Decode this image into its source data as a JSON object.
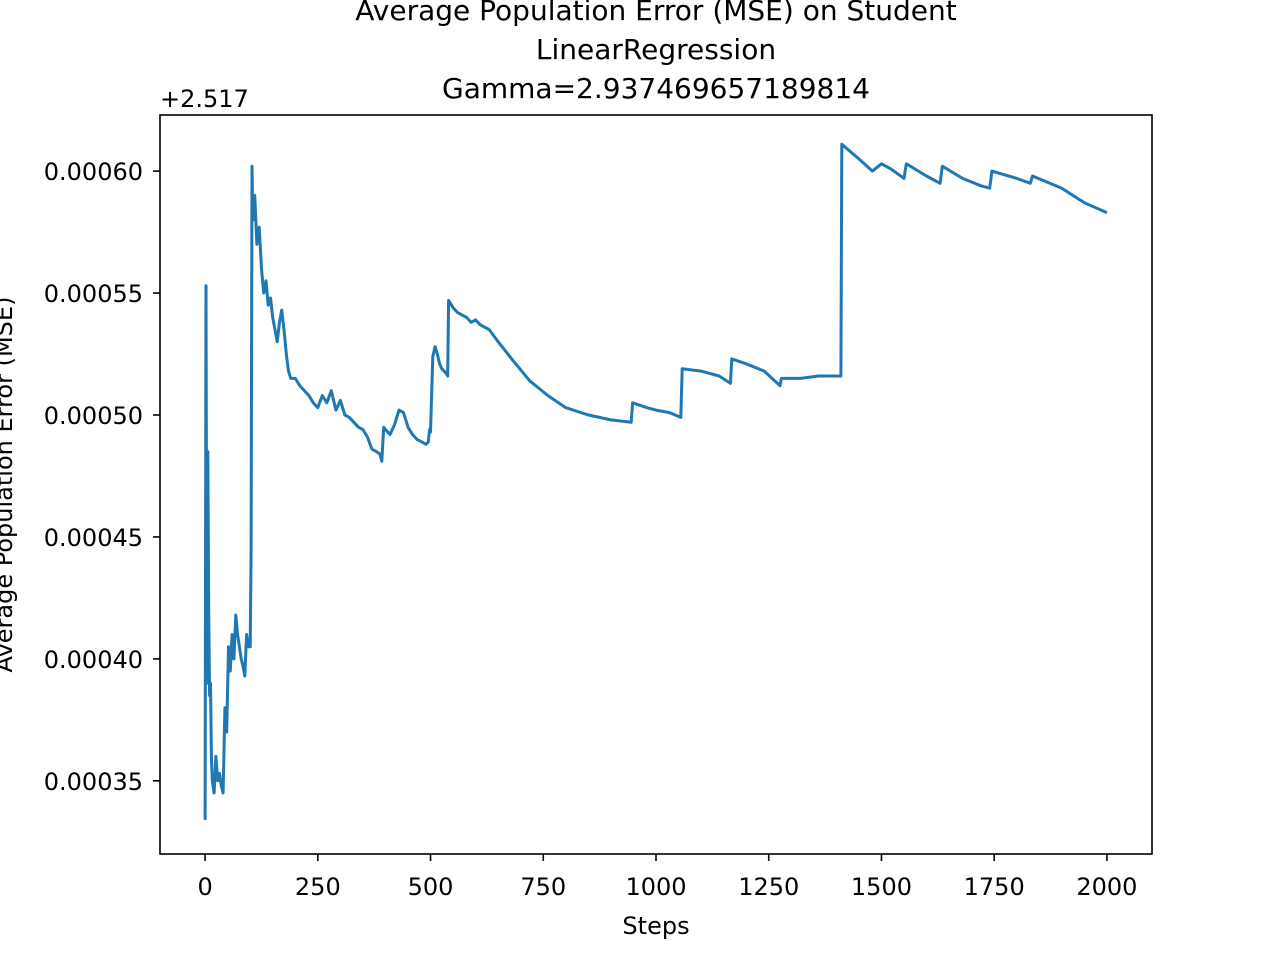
{
  "chart_data": {
    "type": "line",
    "title_lines": [
      "Average Population Error (MSE) on Student",
      "LinearRegression",
      "Gamma=2.937469657189814"
    ],
    "xlabel": "Steps",
    "ylabel": "Average Population Error (MSE)",
    "y_offset_label": "+2.517",
    "xlim": [
      -100,
      2100
    ],
    "ylim": [
      0.00032,
      0.000623
    ],
    "xticks": [
      0,
      250,
      500,
      750,
      1000,
      1250,
      1500,
      1750,
      2000
    ],
    "xtick_labels": [
      "0",
      "250",
      "500",
      "750",
      "1000",
      "1250",
      "1500",
      "1750",
      "2000"
    ],
    "yticks": [
      0.00035,
      0.0004,
      0.00045,
      0.0005,
      0.00055,
      0.0006
    ],
    "ytick_labels": [
      "0.00035",
      "0.00040",
      "0.00045",
      "0.00050",
      "0.00055",
      "0.00060"
    ],
    "line_color": "#1f77b4",
    "grid": false,
    "series": [
      {
        "x": [
          0,
          2,
          4,
          6,
          8,
          10,
          12,
          14,
          16,
          20,
          24,
          28,
          32,
          36,
          40,
          44,
          48,
          52,
          56,
          60,
          64,
          68,
          72,
          76,
          80,
          84,
          88,
          92,
          96,
          100,
          102,
          104,
          106,
          110,
          115,
          120,
          125,
          130,
          135,
          140,
          145,
          150,
          155,
          160,
          165,
          170,
          175,
          180,
          185,
          190,
          200,
          210,
          220,
          230,
          240,
          250,
          260,
          270,
          280,
          290,
          300,
          310,
          320,
          330,
          340,
          350,
          360,
          370,
          380,
          388,
          392,
          396,
          400,
          410,
          420,
          430,
          440,
          450,
          460,
          470,
          480,
          490,
          495,
          498,
          500,
          505,
          510,
          515,
          520,
          525,
          530,
          535,
          538,
          540,
          550,
          560,
          570,
          580,
          590,
          600,
          610,
          620,
          630,
          650,
          680,
          720,
          760,
          800,
          850,
          900,
          945,
          948,
          980,
          1000,
          1030,
          1055,
          1058,
          1100,
          1140,
          1165,
          1168,
          1200,
          1240,
          1275,
          1278,
          1320,
          1360,
          1410,
          1412,
          1450,
          1480,
          1500,
          1520,
          1550,
          1555,
          1600,
          1630,
          1635,
          1680,
          1720,
          1740,
          1745,
          1800,
          1830,
          1835,
          1900,
          1950,
          2000
        ],
        "y": [
          0.000334,
          0.000553,
          0.00039,
          0.000485,
          0.00042,
          0.000385,
          0.00039,
          0.00036,
          0.00035,
          0.000345,
          0.00036,
          0.00035,
          0.000353,
          0.000348,
          0.000345,
          0.00038,
          0.00037,
          0.000405,
          0.000395,
          0.00041,
          0.0004,
          0.000418,
          0.00041,
          0.000405,
          0.0004,
          0.000397,
          0.000393,
          0.00041,
          0.000405,
          0.000405,
          0.000445,
          0.000602,
          0.00058,
          0.00059,
          0.00057,
          0.000577,
          0.00056,
          0.00055,
          0.000555,
          0.000545,
          0.000548,
          0.00054,
          0.000535,
          0.00053,
          0.000538,
          0.000543,
          0.000535,
          0.000525,
          0.000518,
          0.000515,
          0.000515,
          0.000512,
          0.00051,
          0.000508,
          0.000505,
          0.000503,
          0.000508,
          0.000505,
          0.00051,
          0.000502,
          0.000506,
          0.0005,
          0.000499,
          0.000497,
          0.000495,
          0.000494,
          0.000491,
          0.000486,
          0.000485,
          0.000484,
          0.000481,
          0.000495,
          0.000494,
          0.000492,
          0.000496,
          0.000502,
          0.000501,
          0.000495,
          0.000492,
          0.00049,
          0.000489,
          0.000488,
          0.000489,
          0.000494,
          0.000493,
          0.000524,
          0.000528,
          0.000525,
          0.000521,
          0.000519,
          0.000518,
          0.000517,
          0.000516,
          0.000547,
          0.000544,
          0.000542,
          0.000541,
          0.00054,
          0.000538,
          0.000539,
          0.000537,
          0.000536,
          0.000535,
          0.00053,
          0.000523,
          0.000514,
          0.000508,
          0.000503,
          0.0005,
          0.000498,
          0.000497,
          0.000505,
          0.000503,
          0.000502,
          0.000501,
          0.000499,
          0.000519,
          0.000518,
          0.000516,
          0.000513,
          0.000523,
          0.000521,
          0.000518,
          0.000512,
          0.000515,
          0.000515,
          0.000516,
          0.000516,
          0.000611,
          0.000605,
          0.0006,
          0.000603,
          0.000601,
          0.000597,
          0.000603,
          0.000598,
          0.000595,
          0.000602,
          0.000597,
          0.000594,
          0.000593,
          0.0006,
          0.000597,
          0.000595,
          0.000598,
          0.000593,
          0.000587,
          0.000583
        ]
      }
    ]
  }
}
